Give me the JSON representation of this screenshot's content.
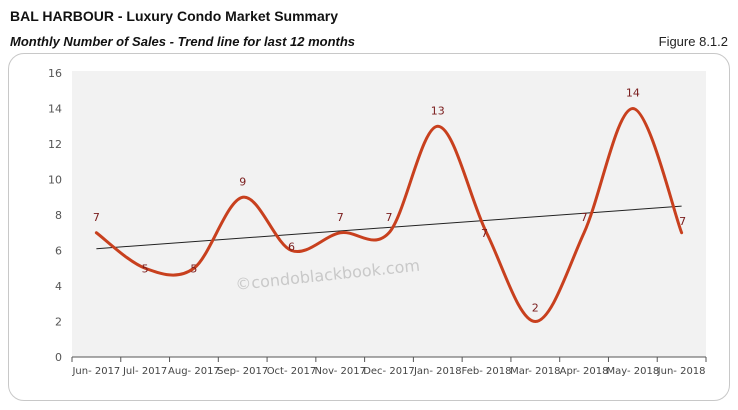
{
  "header": {
    "title": "BAL HARBOUR - Luxury Condo Market Summary",
    "subtitle": "Monthly Number of Sales - Trend line for last 12 months",
    "figure_label": "Figure 8.1.2"
  },
  "watermark": "©condoblackbook.com",
  "colors": {
    "series": "#c8401e",
    "trend": "#222222",
    "plot_bg": "#f2f2f2",
    "label": "#7a1c1c"
  },
  "chart_data": {
    "type": "line",
    "title": "Monthly Number of Sales - Trend line for last 12 months",
    "xlabel": "",
    "ylabel": "",
    "ylim": [
      0,
      16
    ],
    "yticks": [
      0,
      2,
      4,
      6,
      8,
      10,
      12,
      14,
      16
    ],
    "grid": false,
    "legend": "none",
    "categories": [
      "Jun- 2017",
      "Jul- 2017",
      "Aug- 2017",
      "Sep- 2017",
      "Oct- 2017",
      "Nov- 2017",
      "Dec- 2017",
      "Jan- 2018",
      "Feb- 2018",
      "Mar- 2018",
      "Apr- 2018",
      "May- 2018",
      "Jun- 2018"
    ],
    "series": [
      {
        "name": "Number of Sales",
        "values": [
          7,
          5,
          5,
          9,
          6,
          7,
          7,
          13,
          7,
          2,
          7,
          14,
          7
        ],
        "smoothed": true,
        "data_labels": true
      },
      {
        "name": "Linear trend",
        "values": [
          6.1,
          6.3,
          6.5,
          6.7,
          6.9,
          7.1,
          7.3,
          7.5,
          7.7,
          7.9,
          8.1,
          8.3,
          8.5
        ],
        "type": "trendline"
      }
    ]
  }
}
